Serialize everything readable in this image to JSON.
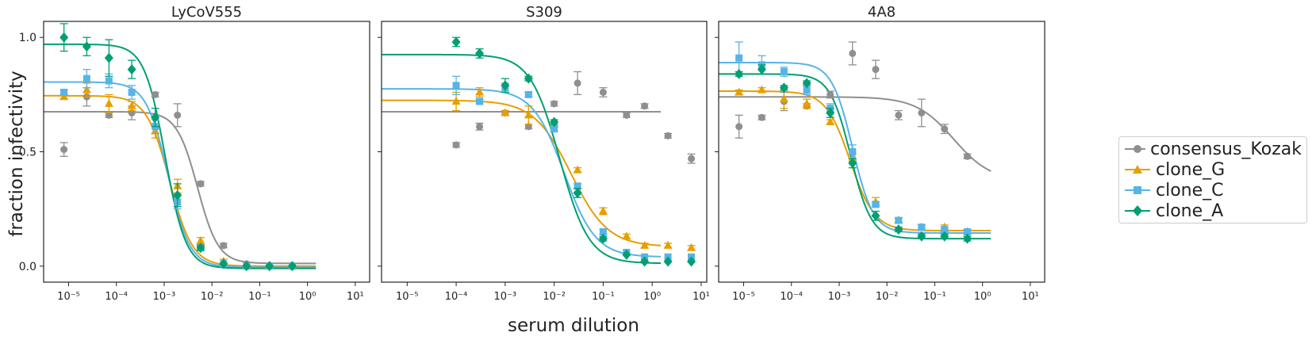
{
  "figure": {
    "ylabel": "fraction infectivity",
    "xlabel": "serum dilution"
  },
  "legend": [
    {
      "name": "consensus_Kozak",
      "marker": "circle",
      "color": "#8f8f8f"
    },
    {
      "name": "clone_G",
      "marker": "triangle",
      "color": "#e69f00"
    },
    {
      "name": "clone_C",
      "marker": "square",
      "color": "#56b4e9"
    },
    {
      "name": "clone_A",
      "marker": "diamond",
      "color": "#009e73"
    }
  ],
  "chart_data": [
    {
      "type": "scatter",
      "title": "LyCoV555",
      "x_scale": "log",
      "xlim": [
        3e-06,
        20
      ],
      "ylim": [
        -0.07,
        1.07
      ],
      "x_ticks": [
        "10⁻⁵",
        "10⁻⁴",
        "10⁻³",
        "10⁻²",
        "10⁻¹",
        "10⁰",
        "10¹"
      ],
      "y_ticks": [
        "0.0",
        "0.5",
        "1.0"
      ],
      "series": [
        {
          "name": "consensus_Kozak",
          "x": [
            8e-06,
            2.4e-05,
            7e-05,
            0.00021,
            0.00065,
            0.0019,
            0.0058,
            0.0175,
            0.053,
            0.16,
            0.48
          ],
          "y": [
            0.51,
            0.74,
            0.66,
            0.67,
            0.75,
            0.66,
            0.36,
            0.09,
            0.01,
            0.0,
            0.0
          ],
          "err": [
            0.03,
            0.04,
            0.01,
            0.03,
            0.01,
            0.05,
            0.01,
            0.01,
            0.005,
            0.005,
            0.005
          ],
          "fit": {
            "top": 0.675,
            "bottom": 0.012,
            "ic50": 0.005,
            "hill": 2.0
          }
        },
        {
          "name": "clone_G",
          "x": [
            8e-06,
            2.4e-05,
            7e-05,
            0.00021,
            0.00065,
            0.0019,
            0.0058,
            0.0175,
            0.053,
            0.16,
            0.48
          ],
          "y": [
            0.74,
            0.77,
            0.71,
            0.7,
            0.59,
            0.35,
            0.11,
            0.02,
            0.0,
            0.0,
            0.0
          ],
          "err": [
            0.01,
            0.03,
            0.04,
            0.02,
            0.03,
            0.03,
            0.015,
            0.01,
            0.005,
            0.005,
            0.005
          ],
          "fit": {
            "top": 0.745,
            "bottom": 0.0,
            "ic50": 0.0013,
            "hill": 1.8
          }
        },
        {
          "name": "clone_C",
          "x": [
            8e-06,
            2.4e-05,
            7e-05,
            0.00021,
            0.00065,
            0.0019,
            0.0058,
            0.0175,
            0.053,
            0.16,
            0.48
          ],
          "y": [
            0.76,
            0.82,
            0.81,
            0.76,
            0.61,
            0.28,
            0.08,
            0.01,
            0.0,
            0.0,
            0.0
          ],
          "err": [
            0.01,
            0.04,
            0.03,
            0.03,
            0.03,
            0.03,
            0.01,
            0.005,
            0.005,
            0.005,
            0.005
          ],
          "fit": {
            "top": 0.805,
            "bottom": -0.005,
            "ic50": 0.0012,
            "hill": 1.9
          }
        },
        {
          "name": "clone_A",
          "x": [
            8e-06,
            2.4e-05,
            7e-05,
            0.00021,
            0.00065,
            0.0019,
            0.0058,
            0.0175,
            0.053,
            0.16,
            0.48
          ],
          "y": [
            1.0,
            0.96,
            0.91,
            0.86,
            0.65,
            0.31,
            0.08,
            0.01,
            0.0,
            0.0,
            0.0
          ],
          "err": [
            0.06,
            0.04,
            0.08,
            0.04,
            0.04,
            0.05,
            0.01,
            0.005,
            0.005,
            0.005,
            0.005
          ],
          "fit": {
            "top": 0.97,
            "bottom": -0.01,
            "ic50": 0.00105,
            "hill": 2.0
          }
        }
      ]
    },
    {
      "type": "scatter",
      "title": "S309",
      "x_scale": "log",
      "xlim": [
        3e-06,
        13
      ],
      "ylim": [
        -0.07,
        1.07
      ],
      "x_ticks": [
        "10⁻⁵",
        "10⁻⁴",
        "10⁻³",
        "10⁻²",
        "10⁻¹",
        "10⁰",
        "10¹"
      ],
      "y_ticks": [
        "0.0",
        "0.5",
        "1.0"
      ],
      "series": [
        {
          "name": "consensus_Kozak",
          "x": [
            0.0001,
            0.0003,
            0.001,
            0.003,
            0.01,
            0.03,
            0.1,
            0.3,
            0.7,
            2.1,
            6.3
          ],
          "y": [
            0.53,
            0.61,
            0.67,
            0.61,
            0.71,
            0.8,
            0.76,
            0.66,
            0.7,
            0.57,
            0.47
          ],
          "err": [
            0.01,
            0.015,
            0.01,
            0.01,
            0.01,
            0.05,
            0.02,
            0.01,
            0.01,
            0.01,
            0.02
          ],
          "fit": {
            "top": 0.675,
            "bottom": 0.47,
            "ic50": 2.05,
            "hill": 20
          }
        },
        {
          "name": "clone_G",
          "x": [
            0.0001,
            0.0003,
            0.001,
            0.003,
            0.01,
            0.03,
            0.1,
            0.3,
            0.7,
            2.1,
            6.3
          ],
          "y": [
            0.72,
            0.76,
            0.67,
            0.66,
            0.62,
            0.42,
            0.24,
            0.13,
            0.09,
            0.09,
            0.08
          ],
          "err": [
            0.04,
            0.02,
            0.01,
            0.04,
            0.01,
            0.01,
            0.015,
            0.01,
            0.01,
            0.01,
            0.01
          ],
          "fit": {
            "top": 0.725,
            "bottom": 0.085,
            "ic50": 0.022,
            "hill": 1.15
          }
        },
        {
          "name": "clone_C",
          "x": [
            0.0001,
            0.0003,
            0.001,
            0.003,
            0.01,
            0.03,
            0.1,
            0.3,
            0.7,
            2.1,
            6.3
          ],
          "y": [
            0.79,
            0.72,
            0.78,
            0.75,
            0.6,
            0.35,
            0.15,
            0.06,
            0.04,
            0.04,
            0.04
          ],
          "err": [
            0.04,
            0.01,
            0.02,
            0.01,
            0.01,
            0.01,
            0.01,
            0.005,
            0.005,
            0.005,
            0.005
          ],
          "fit": {
            "top": 0.775,
            "bottom": 0.04,
            "ic50": 0.016,
            "hill": 1.35
          }
        },
        {
          "name": "clone_A",
          "x": [
            0.0001,
            0.0003,
            0.001,
            0.003,
            0.01,
            0.03,
            0.1,
            0.3,
            0.7,
            2.1,
            6.3
          ],
          "y": [
            0.98,
            0.93,
            0.79,
            0.82,
            0.63,
            0.32,
            0.12,
            0.05,
            0.02,
            0.02,
            0.02
          ],
          "err": [
            0.02,
            0.02,
            0.03,
            0.01,
            0.01,
            0.02,
            0.01,
            0.005,
            0.005,
            0.005,
            0.005
          ],
          "fit": {
            "top": 0.925,
            "bottom": 0.012,
            "ic50": 0.013,
            "hill": 1.45
          }
        }
      ]
    },
    {
      "type": "scatter",
      "title": "4A8",
      "x_scale": "log",
      "xlim": [
        3e-06,
        20
      ],
      "ylim": [
        -0.07,
        1.07
      ],
      "x_ticks": [
        "10⁻⁵",
        "10⁻⁴",
        "10⁻³",
        "10⁻²",
        "10⁻¹",
        "10⁰",
        "10¹"
      ],
      "y_ticks": [
        "0.0",
        "0.5",
        "1.0"
      ],
      "series": [
        {
          "name": "consensus_Kozak",
          "x": [
            8e-06,
            2.4e-05,
            7e-05,
            0.00021,
            0.00065,
            0.0019,
            0.0058,
            0.0175,
            0.053,
            0.16,
            0.48
          ],
          "y": [
            0.61,
            0.65,
            0.72,
            0.7,
            0.75,
            0.93,
            0.86,
            0.66,
            0.67,
            0.6,
            0.48
          ],
          "err": [
            0.05,
            0.01,
            0.04,
            0.01,
            0.015,
            0.05,
            0.04,
            0.02,
            0.06,
            0.02,
            0.01
          ],
          "fit": {
            "top": 0.74,
            "bottom": 0.37,
            "ic50": 0.25,
            "hill": 1.1
          }
        },
        {
          "name": "clone_G",
          "x": [
            8e-06,
            2.4e-05,
            7e-05,
            0.00021,
            0.00065,
            0.0019,
            0.0058,
            0.0175,
            0.053,
            0.16,
            0.48
          ],
          "y": [
            0.76,
            0.77,
            0.73,
            0.71,
            0.63,
            0.47,
            0.28,
            0.2,
            0.17,
            0.17,
            0.15
          ],
          "err": [
            0.01,
            0.01,
            0.04,
            0.02,
            0.01,
            0.02,
            0.02,
            0.01,
            0.01,
            0.01,
            0.01
          ],
          "fit": {
            "top": 0.765,
            "bottom": 0.155,
            "ic50": 0.0017,
            "hill": 1.7
          }
        },
        {
          "name": "clone_C",
          "x": [
            8e-06,
            2.4e-05,
            7e-05,
            0.00021,
            0.00065,
            0.0019,
            0.0058,
            0.0175,
            0.053,
            0.16,
            0.48
          ],
          "y": [
            0.91,
            0.88,
            0.85,
            0.77,
            0.69,
            0.5,
            0.27,
            0.2,
            0.17,
            0.16,
            0.15
          ],
          "err": [
            0.07,
            0.04,
            0.02,
            0.02,
            0.02,
            0.03,
            0.01,
            0.01,
            0.01,
            0.01,
            0.01
          ],
          "fit": {
            "top": 0.89,
            "bottom": 0.145,
            "ic50": 0.0019,
            "hill": 2.0
          }
        },
        {
          "name": "clone_A",
          "x": [
            8e-06,
            2.4e-05,
            7e-05,
            0.00021,
            0.00065,
            0.0019,
            0.0058,
            0.0175,
            0.053,
            0.16,
            0.48
          ],
          "y": [
            0.84,
            0.86,
            0.78,
            0.8,
            0.67,
            0.45,
            0.22,
            0.16,
            0.13,
            0.13,
            0.12
          ],
          "err": [
            0.01,
            0.02,
            0.01,
            0.01,
            0.02,
            0.02,
            0.02,
            0.01,
            0.01,
            0.01,
            0.01
          ],
          "fit": {
            "top": 0.84,
            "bottom": 0.12,
            "ic50": 0.00175,
            "hill": 2.0
          }
        }
      ]
    }
  ]
}
